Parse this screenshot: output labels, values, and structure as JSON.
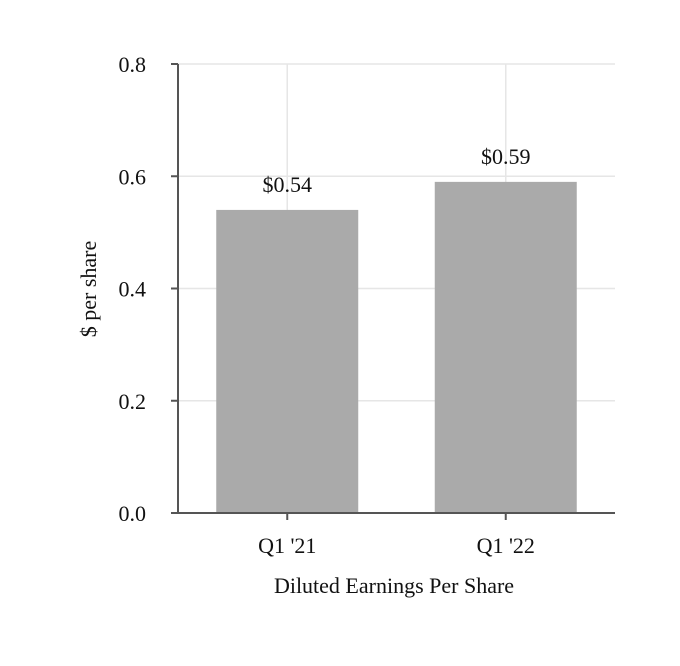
{
  "chart_data": {
    "type": "bar",
    "categories": [
      "Q1 '21",
      "Q1 '22"
    ],
    "values": [
      0.54,
      0.59
    ],
    "data_labels": [
      "$0.54",
      "$0.59"
    ],
    "title": "",
    "xlabel": "Diluted Earnings Per Share",
    "ylabel": "$ per share",
    "ylim": [
      0,
      0.8
    ],
    "yticks": [
      0.0,
      0.2,
      0.4,
      0.6,
      0.8
    ],
    "ytick_labels": [
      "0.0",
      "0.2",
      "0.4",
      "0.6",
      "0.8"
    ],
    "grid": true,
    "legend": "none",
    "bar_color": "#aaaaaa",
    "grid_color": "#e6e6e6",
    "axis_color": "#555555"
  }
}
